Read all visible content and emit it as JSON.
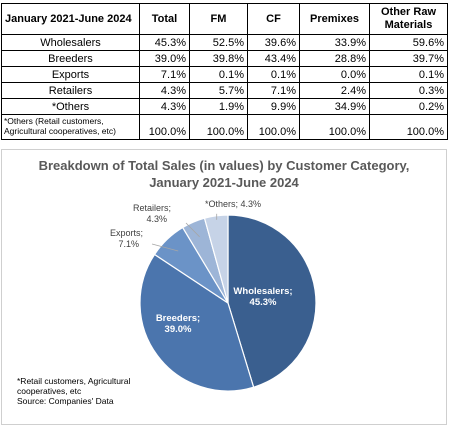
{
  "table": {
    "headers": [
      "January 2021-June 2024",
      "Total",
      "FM",
      "CF",
      "Premixes",
      "Other Raw Materials"
    ],
    "rows": [
      {
        "label": "Wholesalers",
        "values": [
          "45.3%",
          "52.5%",
          "39.6%",
          "33.9%",
          "59.6%"
        ]
      },
      {
        "label": "Breeders",
        "values": [
          "39.0%",
          "39.8%",
          "43.4%",
          "28.8%",
          "39.7%"
        ]
      },
      {
        "label": "Exports",
        "values": [
          "7.1%",
          "0.1%",
          "0.1%",
          "0.0%",
          "0.1%"
        ]
      },
      {
        "label": "Retailers",
        "values": [
          "4.3%",
          "5.7%",
          "7.1%",
          "2.4%",
          "0.3%"
        ]
      },
      {
        "label": "*Others",
        "values": [
          "4.3%",
          "1.9%",
          "9.9%",
          "34.9%",
          "0.2%"
        ]
      }
    ],
    "note": "*Others (Retail customers, Agricultural cooperatives, etc)",
    "totals": [
      "100.0%",
      "100.0%",
      "100.0%",
      "100.0%",
      "100.0%"
    ]
  },
  "chart_data": {
    "type": "pie",
    "title_lines": [
      "Breakdown of Total Sales (in values) by Customer Category,",
      "January 2021-June 2024"
    ],
    "slices": [
      {
        "label": "Wholesalers;",
        "value_label": "45.3%",
        "value": 45.3,
        "color": "#3a5f8f"
      },
      {
        "label": "Breeders;",
        "value_label": "39.0%",
        "value": 39.0,
        "color": "#4b75ad"
      },
      {
        "label": "Exports;",
        "value_label": "7.1%",
        "value": 7.1,
        "color": "#6b93c7"
      },
      {
        "label": "Retailers;",
        "value_label": "4.3%",
        "value": 4.3,
        "color": "#9db5d7"
      },
      {
        "label": "*Others;",
        "value_label": "4.3%",
        "value": 4.3,
        "color": "#c6d3e7"
      }
    ]
  },
  "footnote": [
    "*Retail customers, Agricultural",
    "cooperatives, etc",
    "Source: Companies' Data"
  ]
}
